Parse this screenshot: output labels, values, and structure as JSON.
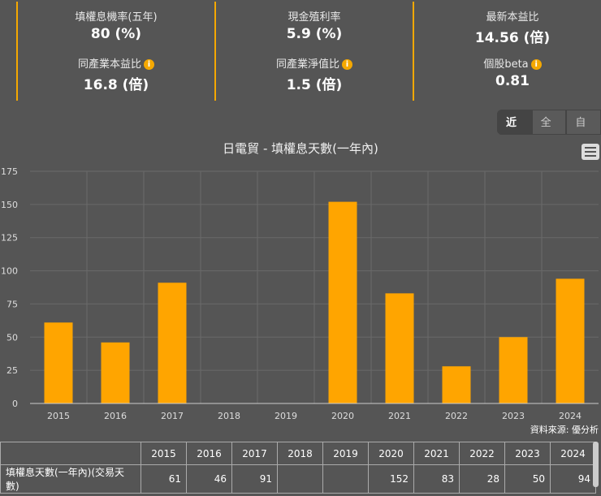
{
  "stats": [
    {
      "label": "填權息機率(五年)",
      "value": "80 (%)",
      "info": false
    },
    {
      "label": "現金殖利率",
      "value": "5.9 (%)",
      "info": false
    },
    {
      "label": "最新本益比",
      "value": "14.56 (倍)",
      "info": false
    },
    {
      "label": "同產業本益比",
      "value": "16.8 (倍)",
      "info": true
    },
    {
      "label": "同產業淨值比",
      "value": "1.5 (倍)",
      "info": true
    },
    {
      "label": "個股beta",
      "value": "0.81",
      "info": true
    }
  ],
  "range_buttons": [
    "近期",
    "全部",
    "自訂"
  ],
  "menu_icon": "hamburger-icon",
  "source": "資料來源: 優分析",
  "chart_data": {
    "type": "bar",
    "title": "日電貿 - 填權息天數(一年內)",
    "categories": [
      "2015",
      "2016",
      "2017",
      "2018",
      "2019",
      "2020",
      "2021",
      "2022",
      "2023",
      "2024"
    ],
    "values": [
      61,
      46,
      91,
      null,
      null,
      152,
      83,
      28,
      50,
      94
    ],
    "ylim": [
      0,
      175
    ],
    "yticks": [
      0,
      25,
      50,
      75,
      100,
      125,
      150,
      175
    ],
    "grid": true,
    "color": "#ffa500"
  },
  "table": {
    "header": [
      "",
      "2015",
      "2016",
      "2017",
      "2018",
      "2019",
      "2020",
      "2021",
      "2022",
      "2023",
      "2024"
    ],
    "row": [
      "填權息天數(一年內)(交易天數)",
      "61",
      "46",
      "91",
      "",
      "",
      "152",
      "83",
      "28",
      "50",
      "94"
    ]
  }
}
